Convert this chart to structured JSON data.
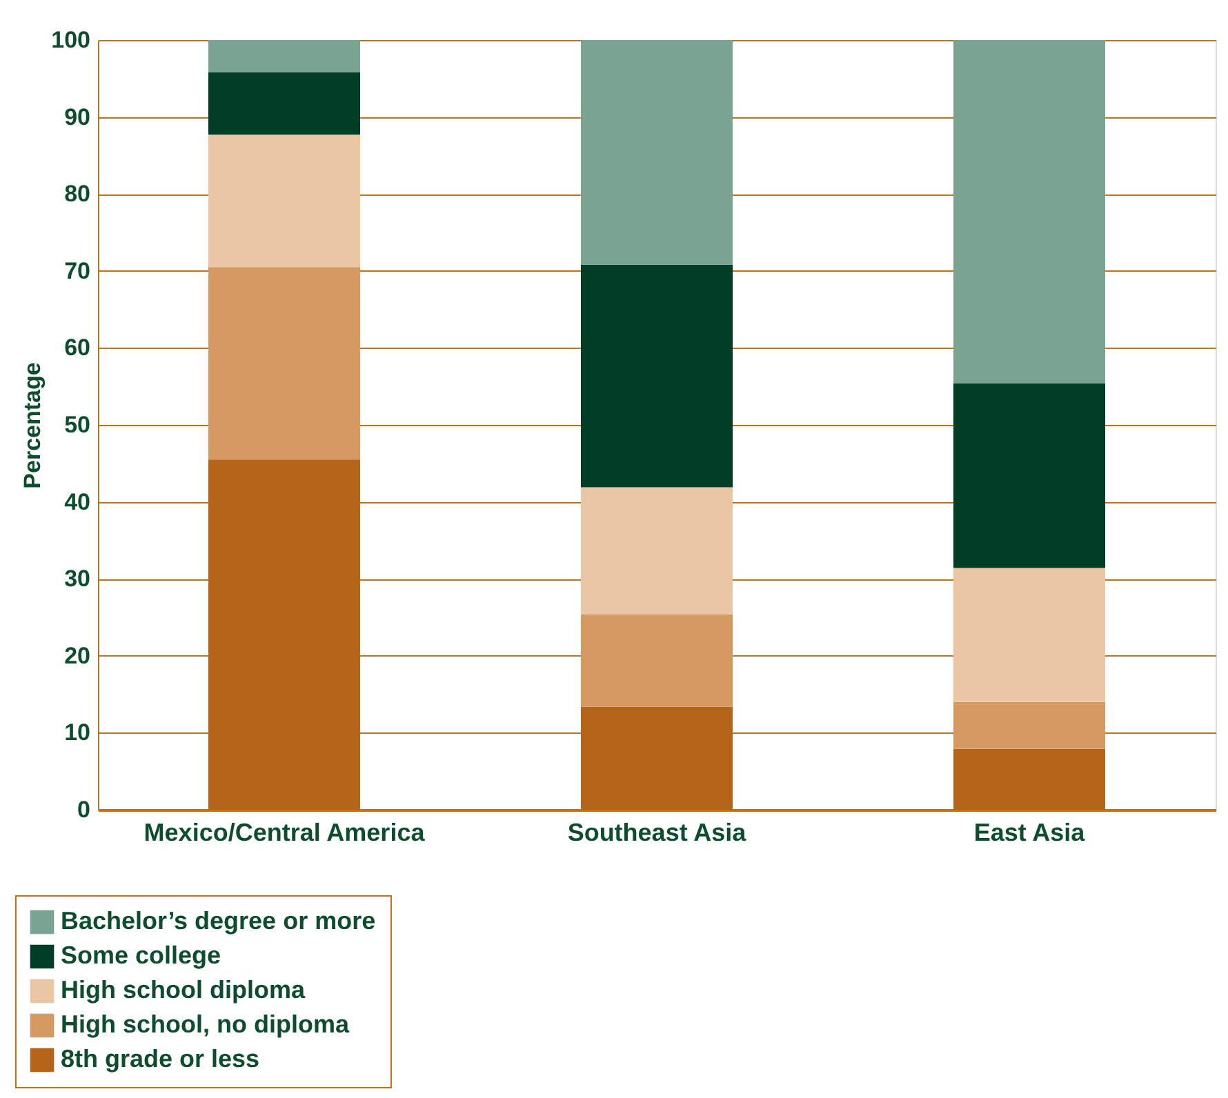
{
  "chart_data": {
    "type": "bar",
    "stacked": true,
    "ylabel": "Percentage",
    "categories": [
      "Mexico/Central America",
      "Southeast Asia",
      "East Asia"
    ],
    "series": [
      {
        "name": "8th grade or less",
        "color": "#b5651a",
        "values": [
          45.5,
          13.4,
          7.9
        ]
      },
      {
        "name": "High school, no diploma",
        "color": "#d49a62",
        "values": [
          25.0,
          12.0,
          6.1
        ]
      },
      {
        "name": "High school diploma",
        "color": "#eac6a4",
        "values": [
          17.2,
          16.5,
          17.4
        ]
      },
      {
        "name": "Some college",
        "color": "#003f26",
        "values": [
          8.1,
          28.9,
          24.0
        ]
      },
      {
        "name": "Bachelor’s degree or more",
        "color": "#7aa392",
        "values": [
          4.2,
          29.2,
          44.6
        ]
      }
    ],
    "ylim": [
      0,
      100
    ],
    "yticks": [
      0,
      10,
      20,
      30,
      40,
      50,
      60,
      70,
      80,
      90,
      100
    ],
    "grid": "y",
    "legend": "bottom left"
  }
}
